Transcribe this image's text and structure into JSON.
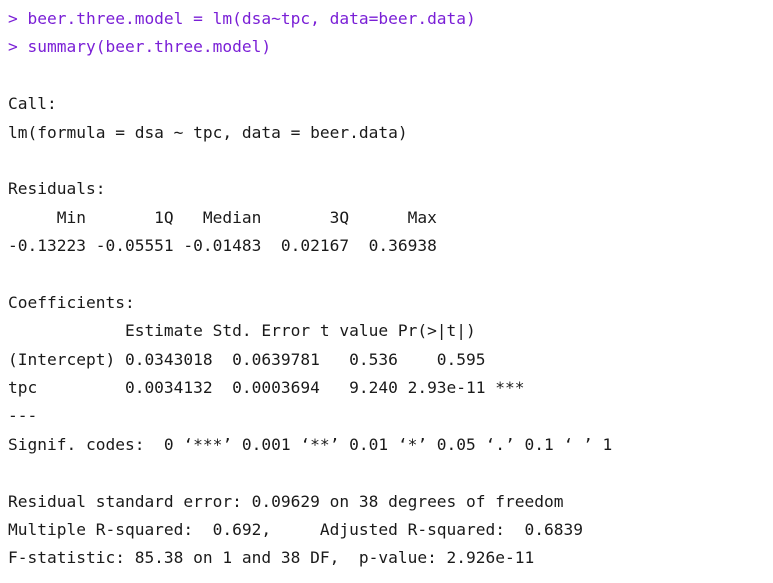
{
  "console": {
    "accent_color": "#7a1fd6",
    "commands": [
      "> beer.three.model = lm(dsa~tpc, data=beer.data)",
      "> summary(beer.three.model)"
    ],
    "call_header": "Call:",
    "call_formula": "lm(formula = dsa ~ tpc, data = beer.data)",
    "residuals_header": "Residuals:",
    "residuals_columns": "     Min       1Q   Median       3Q      Max ",
    "residuals_values": "-0.13223 -0.05551 -0.01483  0.02167  0.36938 ",
    "coefficients_header": "Coefficients:",
    "coefficients_columns": "            Estimate Std. Error t value Pr(>|t|)    ",
    "coefficients_rows": [
      "(Intercept) 0.0343018  0.0639781   0.536    0.595    ",
      "tpc         0.0034132  0.0003694   9.240 2.93e-11 ***"
    ],
    "separator": "---",
    "signif_codes": "Signif. codes:  0 ‘***’ 0.001 ‘**’ 0.01 ‘*’ 0.05 ‘.’ 0.1 ‘ ’ 1",
    "residual_se": "Residual standard error: 0.09629 on 38 degrees of freedom",
    "r_squared": "Multiple R-squared:  0.692,\tAdjusted R-squared:  0.6839 ",
    "f_statistic": "F-statistic: 85.38 on 1 and 38 DF,  p-value: 2.926e-11"
  }
}
